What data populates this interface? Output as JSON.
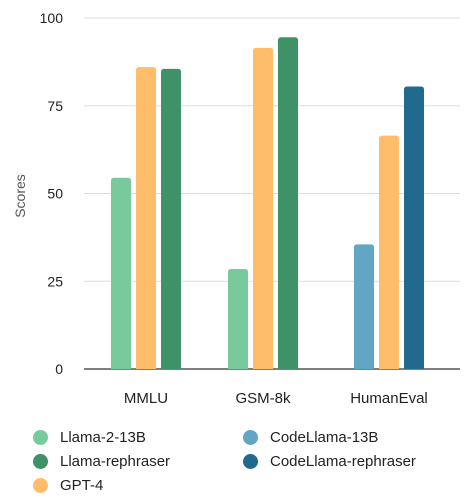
{
  "chart_data": {
    "type": "bar",
    "ylabel": "Scores",
    "xlabel": "",
    "ylim": [
      0,
      100
    ],
    "yticks": [
      0,
      25,
      50,
      75,
      100
    ],
    "grid": true,
    "legend_position": "bottom",
    "categories": [
      "MMLU",
      "GSM-8k",
      "HumanEval"
    ],
    "groups": [
      {
        "category": "MMLU",
        "bars": [
          {
            "series": "Llama-2-13B",
            "value": 54.5
          },
          {
            "series": "GPT-4",
            "value": 86
          },
          {
            "series": "Llama-rephraser",
            "value": 85.5
          }
        ]
      },
      {
        "category": "GSM-8k",
        "bars": [
          {
            "series": "Llama-2-13B",
            "value": 28.5
          },
          {
            "series": "GPT-4",
            "value": 91.5
          },
          {
            "series": "Llama-rephraser",
            "value": 94.5
          }
        ]
      },
      {
        "category": "HumanEval",
        "bars": [
          {
            "series": "CodeLlama-13B",
            "value": 35.5
          },
          {
            "series": "GPT-4",
            "value": 66.5
          },
          {
            "series": "CodeLlama-rephraser",
            "value": 80.5
          }
        ]
      }
    ],
    "series": [
      {
        "name": "Llama-2-13B",
        "color": "#78c99c"
      },
      {
        "name": "Llama-rephraser",
        "color": "#3f9168"
      },
      {
        "name": "GPT-4",
        "color": "#fdbd6a"
      },
      {
        "name": "CodeLlama-13B",
        "color": "#62a6c3"
      },
      {
        "name": "CodeLlama-rephraser",
        "color": "#226a8d"
      }
    ]
  }
}
